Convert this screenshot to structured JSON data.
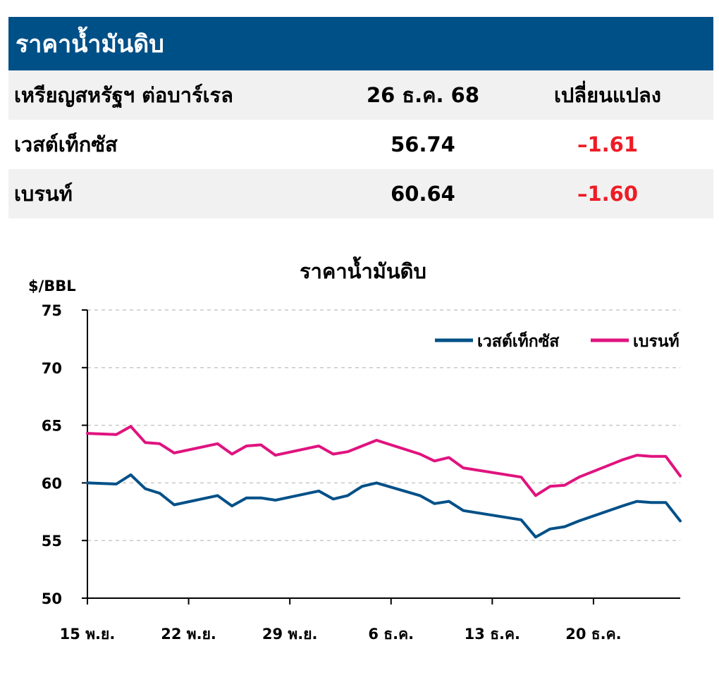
{
  "table": {
    "title": "ราคาน้ำมันดิบ",
    "header": {
      "label": "เหรียญสหรัฐฯ ต่อบาร์เรล",
      "date": "26 ธ.ค. 68",
      "change": "เปลี่ยนแปลง"
    },
    "rows": [
      {
        "name": "เวสต์เท็กซัส",
        "price": "56.74",
        "change": "–1.61"
      },
      {
        "name": "เบรนท์",
        "price": "60.64",
        "change": "–1.60"
      }
    ],
    "negative_color": "#ee1c25",
    "header_bg": "#005088"
  },
  "chart_data": {
    "type": "line",
    "title": "ราคาน้ำมันดิบ",
    "ylabel": "$/BBL",
    "xlabel": "",
    "ylim": [
      50,
      75
    ],
    "yticks": [
      50,
      55,
      60,
      65,
      70,
      75
    ],
    "grid": "horizontal dashed",
    "legend_placement": "top-right",
    "xlim": [
      "2025-11-15",
      "2025-12-26"
    ],
    "x_ticks": [
      {
        "date": "2025-11-15",
        "label": "15 พ.ย."
      },
      {
        "date": "2025-11-22",
        "label": "22 พ.ย."
      },
      {
        "date": "2025-11-29",
        "label": "29 พ.ย."
      },
      {
        "date": "2025-12-06",
        "label": "6 ธ.ค."
      },
      {
        "date": "2025-12-13",
        "label": "13 ธ.ค."
      },
      {
        "date": "2025-12-20",
        "label": "20 ธ.ค."
      }
    ],
    "series": [
      {
        "name": "เวสต์เท็กซัส",
        "color": "#005088",
        "points": [
          [
            "2025-11-15",
            60.0
          ],
          [
            "2025-11-17",
            59.9
          ],
          [
            "2025-11-18",
            60.7
          ],
          [
            "2025-11-19",
            59.5
          ],
          [
            "2025-11-20",
            59.1
          ],
          [
            "2025-11-21",
            58.1
          ],
          [
            "2025-11-24",
            58.9
          ],
          [
            "2025-11-25",
            58.0
          ],
          [
            "2025-11-26",
            58.7
          ],
          [
            "2025-11-27",
            58.7
          ],
          [
            "2025-11-28",
            58.5
          ],
          [
            "2025-12-01",
            59.3
          ],
          [
            "2025-12-02",
            58.6
          ],
          [
            "2025-12-03",
            58.9
          ],
          [
            "2025-12-04",
            59.7
          ],
          [
            "2025-12-05",
            60.0
          ],
          [
            "2025-12-08",
            58.9
          ],
          [
            "2025-12-09",
            58.2
          ],
          [
            "2025-12-10",
            58.4
          ],
          [
            "2025-12-11",
            57.6
          ],
          [
            "2025-12-15",
            56.8
          ],
          [
            "2025-12-16",
            55.3
          ],
          [
            "2025-12-17",
            56.0
          ],
          [
            "2025-12-18",
            56.2
          ],
          [
            "2025-12-19",
            56.7
          ],
          [
            "2025-12-22",
            58.0
          ],
          [
            "2025-12-23",
            58.4
          ],
          [
            "2025-12-24",
            58.3
          ],
          [
            "2025-12-25",
            58.3
          ],
          [
            "2025-12-26",
            56.7
          ]
        ]
      },
      {
        "name": "เบรนท์",
        "color": "#e0137f",
        "points": [
          [
            "2025-11-15",
            64.3
          ],
          [
            "2025-11-17",
            64.2
          ],
          [
            "2025-11-18",
            64.9
          ],
          [
            "2025-11-19",
            63.5
          ],
          [
            "2025-11-20",
            63.4
          ],
          [
            "2025-11-21",
            62.6
          ],
          [
            "2025-11-24",
            63.4
          ],
          [
            "2025-11-25",
            62.5
          ],
          [
            "2025-11-26",
            63.2
          ],
          [
            "2025-11-27",
            63.3
          ],
          [
            "2025-11-28",
            62.4
          ],
          [
            "2025-12-01",
            63.2
          ],
          [
            "2025-12-02",
            62.5
          ],
          [
            "2025-12-03",
            62.7
          ],
          [
            "2025-12-05",
            63.7
          ],
          [
            "2025-12-08",
            62.5
          ],
          [
            "2025-12-09",
            61.9
          ],
          [
            "2025-12-10",
            62.2
          ],
          [
            "2025-12-11",
            61.3
          ],
          [
            "2025-12-15",
            60.5
          ],
          [
            "2025-12-16",
            58.9
          ],
          [
            "2025-12-17",
            59.7
          ],
          [
            "2025-12-18",
            59.8
          ],
          [
            "2025-12-19",
            60.5
          ],
          [
            "2025-12-22",
            62.0
          ],
          [
            "2025-12-23",
            62.4
          ],
          [
            "2025-12-24",
            62.3
          ],
          [
            "2025-12-25",
            62.3
          ],
          [
            "2025-12-26",
            60.6
          ]
        ]
      }
    ]
  }
}
